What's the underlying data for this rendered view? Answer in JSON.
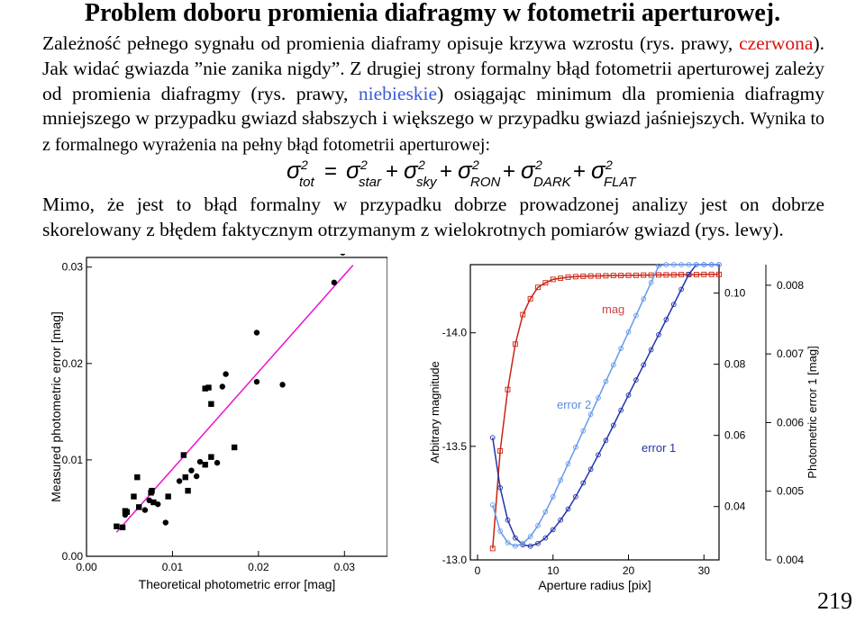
{
  "title": "Problem doboru promienia diafragmy w fotometrii aperturowej.",
  "para1": {
    "t1": "Zależność pełnego sygnału od promienia diaframy opisuje krzywa wzrostu (rys. prawy, ",
    "red": "czerwona",
    "t2": "). Jak widać gwiazda ”nie zanika nigdy”. Z drugiej strony formalny błąd fotometrii aperturowej zależy od promienia diafragmy (rys. prawy, ",
    "blue": "niebieskie",
    "t3": ") osiągając minimum dla promienia diafragmy mniejszego w przypadku gwiazd słabszych i większego w przypadku gwiazd jaśniejszych. ",
    "t4": "Wynika to z formalnego wyrażenia na pełny błąd fotometrii aperturowej:"
  },
  "formula": {
    "symbol": "σ",
    "exp": "2",
    "subs": [
      "tot",
      "star",
      "sky",
      "RON",
      "DARK",
      "FLAT"
    ],
    "equals": "=",
    "plus": "+"
  },
  "para2": "Mimo, że jest to błąd formalny w przypadku dobrze prowadzonej analizy jest on dobrze skorelowany z błędem faktycznym otrzymanym z wielokrotnych pomiarów gwiazd (rys. lewy).",
  "page_number": "219",
  "chart_data": [
    {
      "type": "scatter",
      "xlabel": "Theoretical photometric error [mag]",
      "ylabel": "Measured photometric error [mag]",
      "xlim": [
        0.0,
        0.035
      ],
      "ylim": [
        0.0,
        0.031
      ],
      "xticks": [
        "0.00",
        "0.01",
        "0.02",
        "0.03"
      ],
      "yticks": [
        "0.00",
        "0.01",
        "0.02",
        "0.03"
      ],
      "line_color": "#ee11cc",
      "fit_line": [
        [
          0.0035,
          0.0025
        ],
        [
          0.031,
          0.0302
        ]
      ],
      "series": [
        {
          "marker": "square",
          "points": [
            [
              0.0035,
              0.0031
            ],
            [
              0.0042,
              0.003
            ],
            [
              0.0045,
              0.0047
            ],
            [
              0.0047,
              0.0046
            ],
            [
              0.0055,
              0.0062
            ],
            [
              0.0061,
              0.0051
            ],
            [
              0.0059,
              0.0082
            ],
            [
              0.0075,
              0.0066
            ],
            [
              0.0076,
              0.0068
            ],
            [
              0.0078,
              0.0056
            ],
            [
              0.0095,
              0.0062
            ],
            [
              0.0118,
              0.0068
            ],
            [
              0.0115,
              0.0082
            ],
            [
              0.0113,
              0.0105
            ],
            [
              0.0138,
              0.0095
            ],
            [
              0.0145,
              0.0103
            ],
            [
              0.0145,
              0.0158
            ],
            [
              0.0138,
              0.0174
            ],
            [
              0.0142,
              0.0175
            ],
            [
              0.0172,
              0.0113
            ]
          ]
        },
        {
          "marker": "circle",
          "points": [
            [
              0.0045,
              0.0043
            ],
            [
              0.0068,
              0.0048
            ],
            [
              0.0073,
              0.0058
            ],
            [
              0.0083,
              0.0054
            ],
            [
              0.0092,
              0.0035
            ],
            [
              0.0108,
              0.0078
            ],
            [
              0.0122,
              0.0089
            ],
            [
              0.0128,
              0.0083
            ],
            [
              0.0132,
              0.0098
            ],
            [
              0.0152,
              0.0097
            ],
            [
              0.0158,
              0.0176
            ],
            [
              0.0162,
              0.0189
            ],
            [
              0.0198,
              0.0181
            ],
            [
              0.0198,
              0.0232
            ],
            [
              0.0228,
              0.0178
            ],
            [
              0.0288,
              0.0284
            ],
            [
              0.0298,
              0.0315
            ]
          ]
        }
      ]
    },
    {
      "type": "line",
      "xlabel": "Aperture radius [pix]",
      "ylabel_left": "Arbitrary magnitude",
      "ylabel_right": "Photometric error 1 [mag]",
      "xlim": [
        0,
        32
      ],
      "xticks": [
        "0",
        "10",
        "20",
        "30"
      ],
      "y_left_ticks": [
        "-14.0",
        "-13.5",
        "-13.0"
      ],
      "y_mid_ticks": [
        "0.10",
        "0.08",
        "0.06",
        "0.04"
      ],
      "y_right_ticks": [
        "0.008",
        "0.007",
        "0.006",
        "0.005",
        "0.004"
      ],
      "labels": {
        "mag": "mag",
        "error2": "error 2",
        "error1": "error 1"
      },
      "series": [
        {
          "name": "mag",
          "color": "#cc2211",
          "axis": "left",
          "x": [
            2,
            3,
            4,
            5,
            6,
            7,
            8,
            9,
            10,
            11,
            12,
            13,
            14,
            15,
            16,
            17,
            18,
            19,
            20,
            21,
            22,
            23,
            24,
            25,
            26,
            27,
            28,
            29,
            30,
            31,
            32
          ],
          "y": [
            -13.05,
            -13.48,
            -13.75,
            -13.95,
            -14.08,
            -14.15,
            -14.2,
            -14.22,
            -14.235,
            -14.24,
            -14.245,
            -14.247,
            -14.249,
            -14.25,
            -14.25,
            -14.251,
            -14.252,
            -14.252,
            -14.253,
            -14.253,
            -14.254,
            -14.254,
            -14.255,
            -14.255,
            -14.255,
            -14.256,
            -14.256,
            -14.256,
            -14.257,
            -14.257,
            -14.257
          ]
        },
        {
          "name": "error 1",
          "color": "#2233aa",
          "axis": "right",
          "x": [
            2,
            3,
            4,
            5,
            6,
            7,
            8,
            9,
            10,
            11,
            12,
            13,
            14,
            15,
            16,
            17,
            18,
            19,
            20,
            21,
            22,
            23,
            24,
            25,
            26,
            27,
            28,
            29,
            30,
            31,
            32
          ],
          "y": [
            0.00578,
            0.00505,
            0.00458,
            0.00432,
            0.00422,
            0.0042,
            0.00424,
            0.00432,
            0.00444,
            0.00458,
            0.00474,
            0.00492,
            0.00512,
            0.00532,
            0.00553,
            0.00574,
            0.00596,
            0.00618,
            0.0064,
            0.00662,
            0.00684,
            0.00706,
            0.00728,
            0.0075,
            0.00772,
            0.00794,
            0.00816,
            0.00838,
            0.0086,
            0.00882,
            0.00904
          ]
        },
        {
          "name": "error 2",
          "color": "#6699ee",
          "axis": "right",
          "x": [
            2,
            3,
            4,
            5,
            6,
            7,
            8,
            9,
            10,
            11,
            12,
            13,
            14,
            15,
            16,
            17,
            18,
            19,
            20,
            21,
            22,
            23,
            24,
            25,
            26,
            27,
            28,
            29,
            30,
            31,
            32
          ],
          "y": [
            0.0048,
            0.00442,
            0.00425,
            0.0042,
            0.00424,
            0.00434,
            0.0045,
            0.0047,
            0.00492,
            0.00516,
            0.0054,
            0.00564,
            0.00588,
            0.00612,
            0.00636,
            0.0066,
            0.00684,
            0.00708,
            0.00732,
            0.00756,
            0.0078,
            0.00804,
            0.00828,
            0.00852,
            0.00876,
            0.009,
            0.00924,
            0.00948,
            0.00972,
            0.00996,
            0.0102
          ]
        }
      ]
    }
  ]
}
